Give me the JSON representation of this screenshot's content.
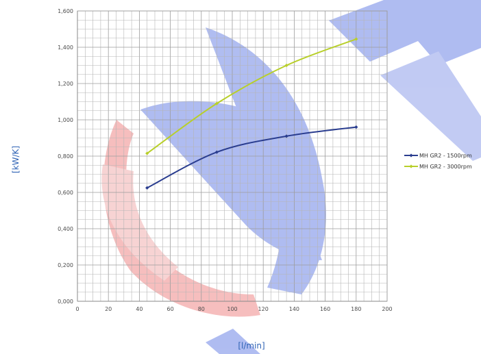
{
  "chart_data": {
    "type": "line",
    "title": "",
    "xlabel": "[l/min]",
    "ylabel": "[kW/K]",
    "xlim": [
      0,
      200
    ],
    "ylim": [
      0,
      1.6
    ],
    "x_ticks": [
      0,
      20,
      40,
      60,
      80,
      100,
      120,
      140,
      160,
      180,
      200
    ],
    "y_ticks": [
      0,
      0.2,
      0.4,
      0.6,
      0.8,
      1.0,
      1.2,
      1.4,
      1.6
    ],
    "x_tick_labels": [
      "0",
      "20",
      "40",
      "60",
      "80",
      "100",
      "120",
      "140",
      "160",
      "180",
      "200"
    ],
    "y_tick_labels": [
      "0,000",
      "0,200",
      "0,400",
      "0,600",
      "0,800",
      "1,000",
      "1,200",
      "1,400",
      "1,600"
    ],
    "grid": true,
    "legend_position": "right",
    "series": [
      {
        "name": "MH GR2 - 1500rpm",
        "color": "#2a3d8f",
        "x": [
          45,
          90,
          135,
          180
        ],
        "y": [
          0.625,
          0.822,
          0.91,
          0.96
        ]
      },
      {
        "name": "MH GR2 - 3000rpm",
        "color": "#b8cf2a",
        "x": [
          45,
          90,
          135,
          180
        ],
        "y": [
          0.815,
          1.09,
          1.3,
          1.445
        ]
      }
    ]
  }
}
